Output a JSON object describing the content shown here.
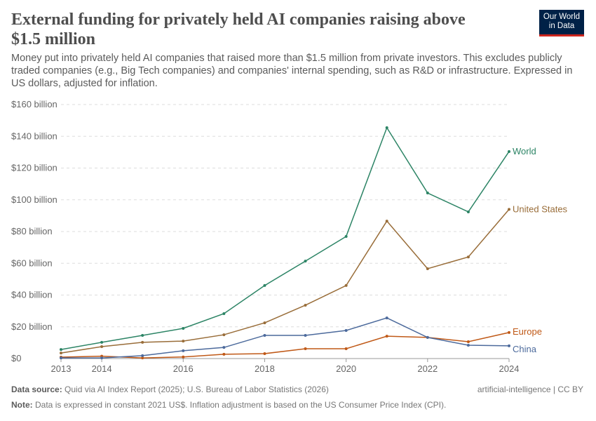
{
  "title": "External funding for privately held AI companies raising above $1.5 million",
  "subtitle": "Money put into privately held AI companies that raised more than $1.5 million from private investors. This excludes publicly traded companies (e.g., Big Tech companies) and companies' internal spending, such as R&D or infrastructure. Expressed in US dollars, adjusted for inflation.",
  "logo": "Our World in Data",
  "footer": {
    "source_label": "Data source:",
    "source": " Quid via AI Index Report (2025); U.S. Bureau of Labor Statistics (2026)",
    "note_label": "Note:",
    "note": " Data is expressed in constant 2021 US$. Inflation adjustment is based on the US Consumer Price Index (CPI).",
    "license": "artificial-intelligence | CC BY"
  },
  "chart_data": {
    "type": "line",
    "xlim": [
      2013,
      2024
    ],
    "ylim": [
      0,
      160
    ],
    "grid": "horizontal dashed",
    "legend": "line-end labels",
    "x": [
      2013,
      2014,
      2015,
      2016,
      2017,
      2018,
      2019,
      2020,
      2021,
      2022,
      2023,
      2024
    ],
    "x_ticks": [
      "2013",
      "2014",
      "2016",
      "2018",
      "2020",
      "2022",
      "2024"
    ],
    "x_tick_values": [
      2013,
      2014,
      2016,
      2018,
      2020,
      2022,
      2024
    ],
    "y_ticks": [
      "$0",
      "$20 billion",
      "$40 billion",
      "$60 billion",
      "$80 billion",
      "$100 billion",
      "$120 billion",
      "$140 billion",
      "$160 billion"
    ],
    "y_tick_values": [
      0,
      20,
      40,
      60,
      80,
      100,
      120,
      140,
      160
    ],
    "series": [
      {
        "name": "World",
        "color": "#2c8465",
        "values": [
          5.7,
          10.2,
          14.6,
          19,
          28.3,
          46,
          61.4,
          76.9,
          145.4,
          104.3,
          92.4,
          130.4
        ]
      },
      {
        "name": "United States",
        "color": "#996d39",
        "values": [
          3.5,
          7.5,
          10.2,
          11,
          15,
          22.5,
          33.6,
          46,
          86.6,
          56.6,
          64,
          94
        ]
      },
      {
        "name": "Europe",
        "color": "#c05917",
        "values": [
          0.9,
          1.5,
          0.4,
          1,
          2.7,
          3.1,
          6.2,
          6.2,
          14.1,
          13.3,
          10.6,
          16.4
        ]
      },
      {
        "name": "China",
        "color": "#4c6a9c",
        "values": [
          0.4,
          0.4,
          1.8,
          4.9,
          7,
          14.6,
          14.6,
          17.7,
          25.6,
          13.3,
          8.4,
          8
        ]
      }
    ]
  }
}
